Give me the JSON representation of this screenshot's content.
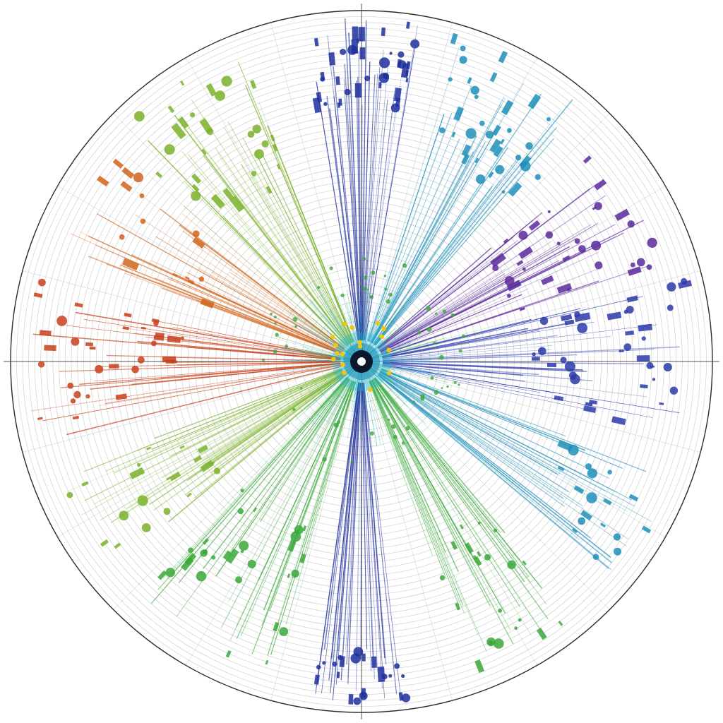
{
  "figure": {
    "background": "#ffffff",
    "ring_color": "#9a9a9a",
    "outline_color": "#2b2b2b",
    "ring_count": 46,
    "spoke_count": 24,
    "palette": {
      "blue": "#2a3aa8",
      "deep_blue": "#1f2f9c",
      "teal": "#1f8fb8",
      "cyan": "#2bb6d8",
      "purple": "#5a2a9a",
      "magenta": "#8a2a6a",
      "orange": "#d0641c",
      "red_orange": "#c8401c",
      "olive": "#a8a22a",
      "lime": "#7ab22a",
      "green": "#3aa83a",
      "center_yellow": "#f0c814",
      "center_dark": "#0b1a2a"
    },
    "clusters": [
      {
        "angle_deg": -90,
        "spread_deg": 10,
        "color": "deep_blue",
        "inner": 0.72,
        "outer": 0.98,
        "blob_count": 38
      },
      {
        "angle_deg": -60,
        "spread_deg": 14,
        "color": "teal",
        "inner": 0.62,
        "outer": 0.96,
        "blob_count": 36
      },
      {
        "angle_deg": -30,
        "spread_deg": 12,
        "color": "purple",
        "inner": 0.45,
        "outer": 0.9,
        "blob_count": 34
      },
      {
        "angle_deg": 0,
        "spread_deg": 14,
        "color": "blue",
        "inner": 0.45,
        "outer": 0.95,
        "blob_count": 40
      },
      {
        "angle_deg": 30,
        "spread_deg": 10,
        "color": "teal",
        "inner": 0.6,
        "outer": 0.95,
        "blob_count": 18
      },
      {
        "angle_deg": 60,
        "spread_deg": 10,
        "color": "green",
        "inner": 0.55,
        "outer": 0.95,
        "blob_count": 22
      },
      {
        "angle_deg": 90,
        "spread_deg": 8,
        "color": "deep_blue",
        "inner": 0.82,
        "outer": 0.97,
        "blob_count": 22
      },
      {
        "angle_deg": 120,
        "spread_deg": 14,
        "color": "green",
        "inner": 0.5,
        "outer": 0.92,
        "blob_count": 30
      },
      {
        "angle_deg": 150,
        "spread_deg": 10,
        "color": "lime",
        "inner": 0.5,
        "outer": 0.92,
        "blob_count": 20
      },
      {
        "angle_deg": 180,
        "spread_deg": 14,
        "color": "red_orange",
        "inner": 0.5,
        "outer": 0.96,
        "blob_count": 34
      },
      {
        "angle_deg": -150,
        "spread_deg": 10,
        "color": "orange",
        "inner": 0.45,
        "outer": 0.92,
        "blob_count": 16
      },
      {
        "angle_deg": -125,
        "spread_deg": 14,
        "color": "lime",
        "inner": 0.55,
        "outer": 0.95,
        "blob_count": 30
      }
    ],
    "center": {
      "burst_color": "cyan",
      "yellow_dots": 18
    }
  }
}
